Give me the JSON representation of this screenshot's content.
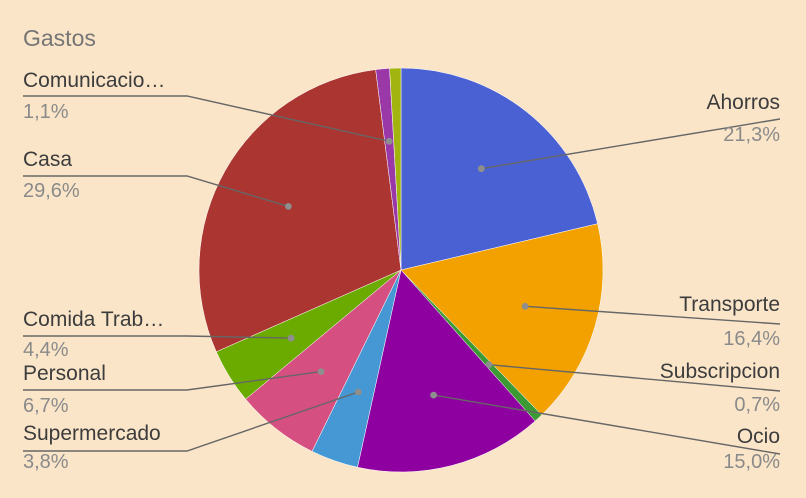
{
  "chart_data": {
    "type": "pie",
    "title": "Gastos",
    "slices": [
      {
        "label": "Ahorros",
        "value": 21.3,
        "display": "21,3%",
        "color": "#4a61d3"
      },
      {
        "label": "Transporte",
        "value": 16.4,
        "display": "16,4%",
        "color": "#f2a100"
      },
      {
        "label": "Subscripcion",
        "value": 0.7,
        "display": "0,7%",
        "color": "#3b9a34"
      },
      {
        "label": "Ocio",
        "value": 15.0,
        "display": "15,0%",
        "color": "#8e00a0"
      },
      {
        "label": "Supermercado",
        "value": 3.8,
        "display": "3,8%",
        "color": "#4598d3"
      },
      {
        "label": "Personal",
        "value": 6.7,
        "display": "6,7%",
        "color": "#d54f80"
      },
      {
        "label": "Comida Trab…",
        "value": 4.4,
        "display": "4,4%",
        "color": "#6bab00"
      },
      {
        "label": "Casa",
        "value": 29.6,
        "display": "29,6%",
        "color": "#ab3530"
      },
      {
        "label": "Comunicacio…",
        "value": 1.1,
        "display": "1,1%",
        "color": "#9b38a8"
      },
      {
        "label": "",
        "value": 0.9,
        "display": "",
        "color": "#a2b40f"
      }
    ],
    "legend": "labels with leader lines"
  }
}
